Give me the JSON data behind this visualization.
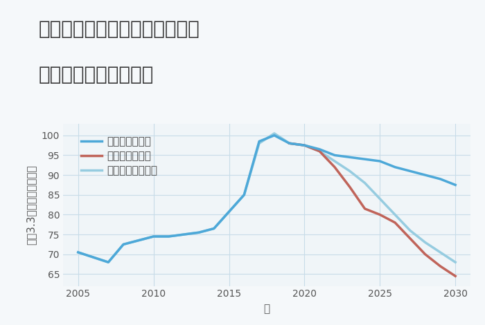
{
  "title_line1": "京都府京都市中京区立誠学区の",
  "title_line2": "中古戸建ての価格推移",
  "xlabel": "年",
  "ylabel": "坪（3.3㎡）単価（万円）",
  "xlim": [
    2004,
    2031
  ],
  "ylim": [
    62,
    103
  ],
  "yticks": [
    65,
    70,
    75,
    80,
    85,
    90,
    95,
    100
  ],
  "xticks": [
    2005,
    2010,
    2015,
    2020,
    2025,
    2030
  ],
  "background_color": "#f5f8fa",
  "plot_bg_color": "#f0f5f8",
  "grid_color": "#c8dce8",
  "good_color": "#4da8d8",
  "bad_color": "#c0645a",
  "normal_color": "#96cce0",
  "good_label": "グッドシナリオ",
  "bad_label": "バッドシナリオ",
  "normal_label": "ノーマルシナリオ",
  "good_x": [
    2005,
    2007,
    2008,
    2010,
    2011,
    2013,
    2014,
    2016,
    2017,
    2018,
    2019,
    2020,
    2021,
    2022,
    2023,
    2024,
    2025,
    2026,
    2027,
    2028,
    2029,
    2030
  ],
  "good_y": [
    70.5,
    68.0,
    72.5,
    74.5,
    74.5,
    75.5,
    76.5,
    85.0,
    98.5,
    100.0,
    98.0,
    97.5,
    96.5,
    95.0,
    94.5,
    94.0,
    93.5,
    92.0,
    91.0,
    90.0,
    89.0,
    87.5
  ],
  "bad_x": [
    2019,
    2020,
    2021,
    2022,
    2023,
    2024,
    2025,
    2026,
    2027,
    2028,
    2029,
    2030
  ],
  "bad_y": [
    98.0,
    97.5,
    96.0,
    92.0,
    87.0,
    81.5,
    80.0,
    78.0,
    74.0,
    70.0,
    67.0,
    64.5
  ],
  "normal_x": [
    2005,
    2007,
    2008,
    2010,
    2011,
    2013,
    2014,
    2016,
    2017,
    2018,
    2019,
    2020,
    2021,
    2022,
    2023,
    2024,
    2025,
    2026,
    2027,
    2028,
    2029,
    2030
  ],
  "normal_y": [
    70.5,
    68.0,
    72.5,
    74.5,
    74.5,
    75.5,
    76.5,
    85.0,
    98.0,
    100.5,
    98.0,
    97.5,
    96.0,
    93.5,
    91.0,
    88.0,
    84.0,
    80.0,
    76.0,
    73.0,
    70.5,
    68.0
  ],
  "line_width": 2.5,
  "title_fontsize": 20,
  "tick_fontsize": 10,
  "label_fontsize": 11,
  "legend_fontsize": 11
}
